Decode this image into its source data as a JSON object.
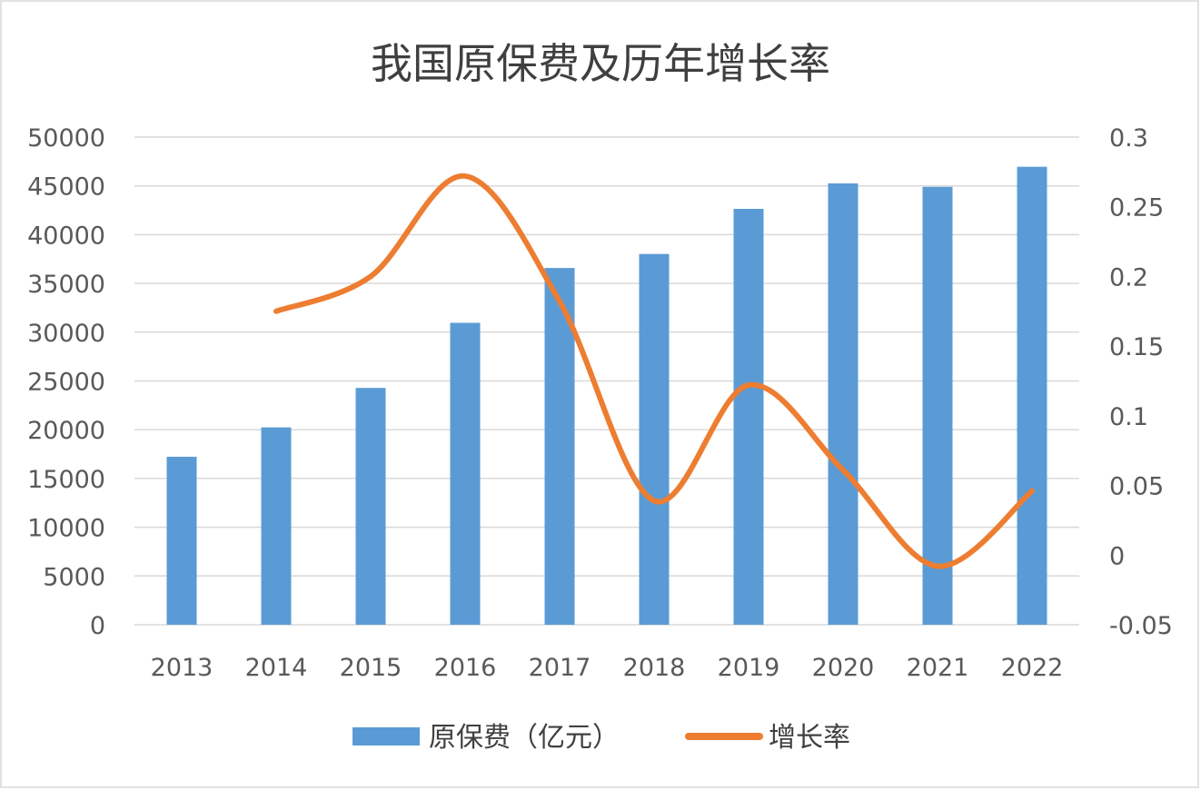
{
  "chart_data": {
    "type": "bar+line",
    "title": "我国原保费及历年增长率",
    "categories": [
      "2013",
      "2014",
      "2015",
      "2016",
      "2017",
      "2018",
      "2019",
      "2020",
      "2021",
      "2022"
    ],
    "series": [
      {
        "name": "原保费（亿元）",
        "type": "bar",
        "axis": "left",
        "color": "#5b9bd5",
        "values": [
          17222,
          20235,
          24283,
          30959,
          36581,
          38017,
          42645,
          45257,
          44900,
          46957
        ]
      },
      {
        "name": "增长率",
        "type": "line",
        "axis": "right",
        "smooth": true,
        "color": "#ed7d31",
        "values": [
          null,
          0.175,
          0.2,
          0.272,
          0.182,
          0.039,
          0.122,
          0.061,
          -0.008,
          0.046
        ]
      }
    ],
    "y_left": {
      "range": [
        0,
        50000
      ],
      "ticks": [
        "0",
        "5000",
        "10000",
        "15000",
        "20000",
        "25000",
        "30000",
        "35000",
        "40000",
        "45000",
        "50000"
      ]
    },
    "y_right": {
      "range": [
        -0.05,
        0.3
      ],
      "ticks": [
        "-0.05",
        "0",
        "0.05",
        "0.1",
        "0.15",
        "0.2",
        "0.25",
        "0.3"
      ]
    },
    "grid": true,
    "legend": "bottom"
  }
}
